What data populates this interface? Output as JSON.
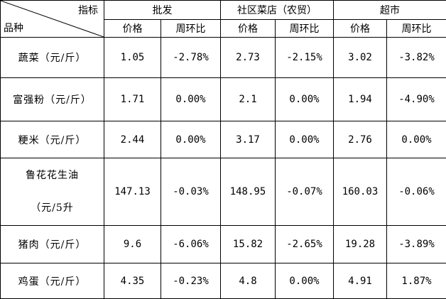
{
  "header": {
    "corner_top": "指标",
    "corner_bottom": "品种",
    "groups": [
      "批发",
      "社区菜店（农贸）",
      "超市"
    ],
    "sub": [
      "价格",
      "周环比",
      "价格",
      "周环比",
      "价格",
      "周环比"
    ]
  },
  "rows": [
    {
      "name": "蔬菜（元/斤）",
      "cells": [
        "1.05",
        "-2.78%",
        "2.73",
        "-2.15%",
        "3.02",
        "-3.82%"
      ]
    },
    {
      "name": "富强粉（元/斤）",
      "cells": [
        "1.71",
        "0.00%",
        "2.1",
        "0.00%",
        "1.94",
        "-4.90%"
      ]
    },
    {
      "name": "粳米（元/斤）",
      "cells": [
        "2.44",
        "0.00%",
        "3.17",
        "0.00%",
        "2.76",
        "0.00%"
      ]
    },
    {
      "name": "鲁花花生油",
      "name2": "（元/5升",
      "cells": [
        "147.13",
        "-0.03%",
        "148.95",
        "-0.07%",
        "160.03",
        "-0.06%"
      ]
    },
    {
      "name": "猪肉（元/斤）",
      "cells": [
        "9.6",
        "-6.06%",
        "15.82",
        "-2.65%",
        "19.28",
        "-3.89%"
      ]
    },
    {
      "name": "鸡蛋（元/斤）",
      "cells": [
        "4.35",
        "-0.23%",
        "4.8",
        "0.00%",
        "4.91",
        "1.87%"
      ]
    }
  ]
}
